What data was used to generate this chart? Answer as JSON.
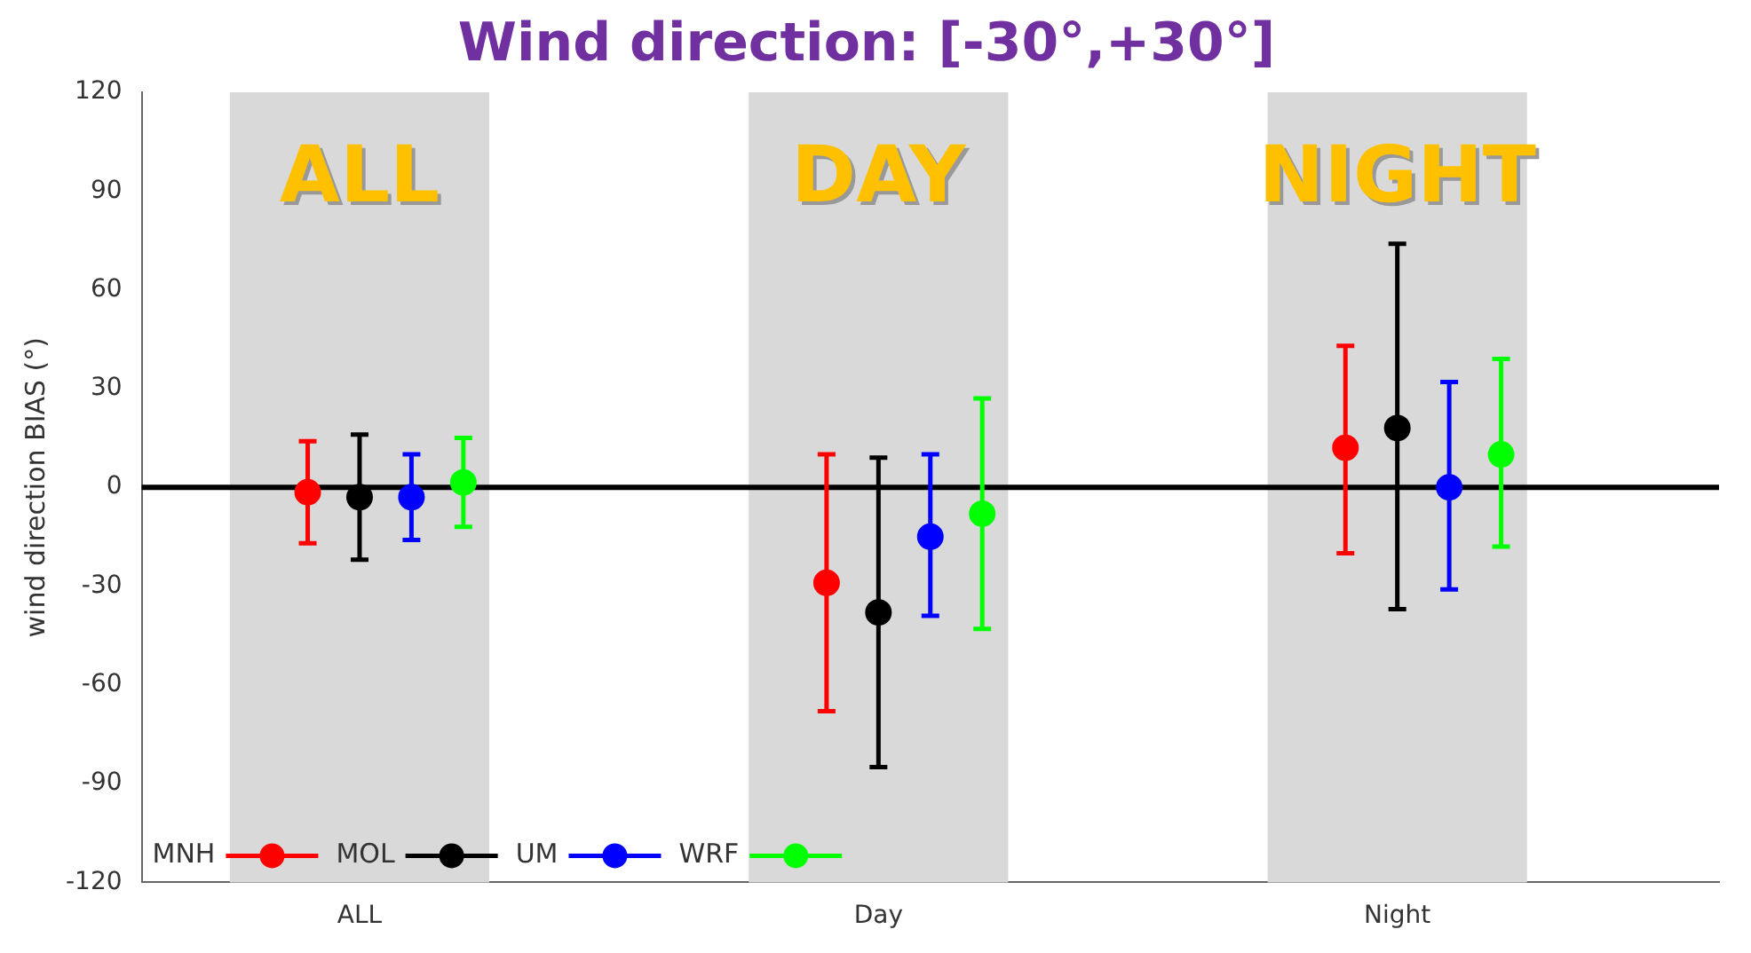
{
  "chart_data": {
    "type": "scatter",
    "title": "Wind direction: [-30°,+30°]",
    "ylabel": "wind direction BIAS (°)",
    "categories": [
      "ALL",
      "Day",
      "Night"
    ],
    "annotations": [
      "ALL",
      "DAY",
      "NIGHT"
    ],
    "ylim": [
      -120,
      120
    ],
    "yticks": [
      -120,
      -90,
      -60,
      -30,
      0,
      30,
      60,
      90,
      120
    ],
    "grid": false,
    "legend": "bottom left",
    "marker": "circle",
    "ref_lines": [
      {
        "axis": "y",
        "value": 0,
        "color": "#000000"
      }
    ],
    "bands": [
      {
        "axis": "x",
        "from": "ALL",
        "to": "ALL",
        "color": "#d9d9d9"
      },
      {
        "axis": "x",
        "from": "Day",
        "to": "Day",
        "color": "#d9d9d9"
      },
      {
        "axis": "x",
        "from": "Night",
        "to": "Night",
        "color": "#d9d9d9"
      }
    ],
    "series": [
      {
        "name": "MNH",
        "color": "#ff0000",
        "values": [
          -1.5,
          -29,
          12
        ],
        "errors": [
          [
            -17,
            14
          ],
          [
            -68,
            10
          ],
          [
            -20,
            43
          ]
        ]
      },
      {
        "name": "MOL",
        "color": "#000000",
        "values": [
          -3,
          -38,
          18
        ],
        "errors": [
          [
            -22,
            16
          ],
          [
            -85,
            9
          ],
          [
            -37,
            74
          ]
        ]
      },
      {
        "name": "UM",
        "color": "#0000ff",
        "values": [
          -3,
          -15,
          0
        ],
        "errors": [
          [
            -16,
            10
          ],
          [
            -39,
            10
          ],
          [
            -31,
            32
          ]
        ]
      },
      {
        "name": "WRF",
        "color": "#00ff00",
        "values": [
          1.5,
          -8,
          10
        ],
        "errors": [
          [
            -12,
            15
          ],
          [
            -43,
            27
          ],
          [
            -18,
            39
          ]
        ]
      }
    ]
  }
}
